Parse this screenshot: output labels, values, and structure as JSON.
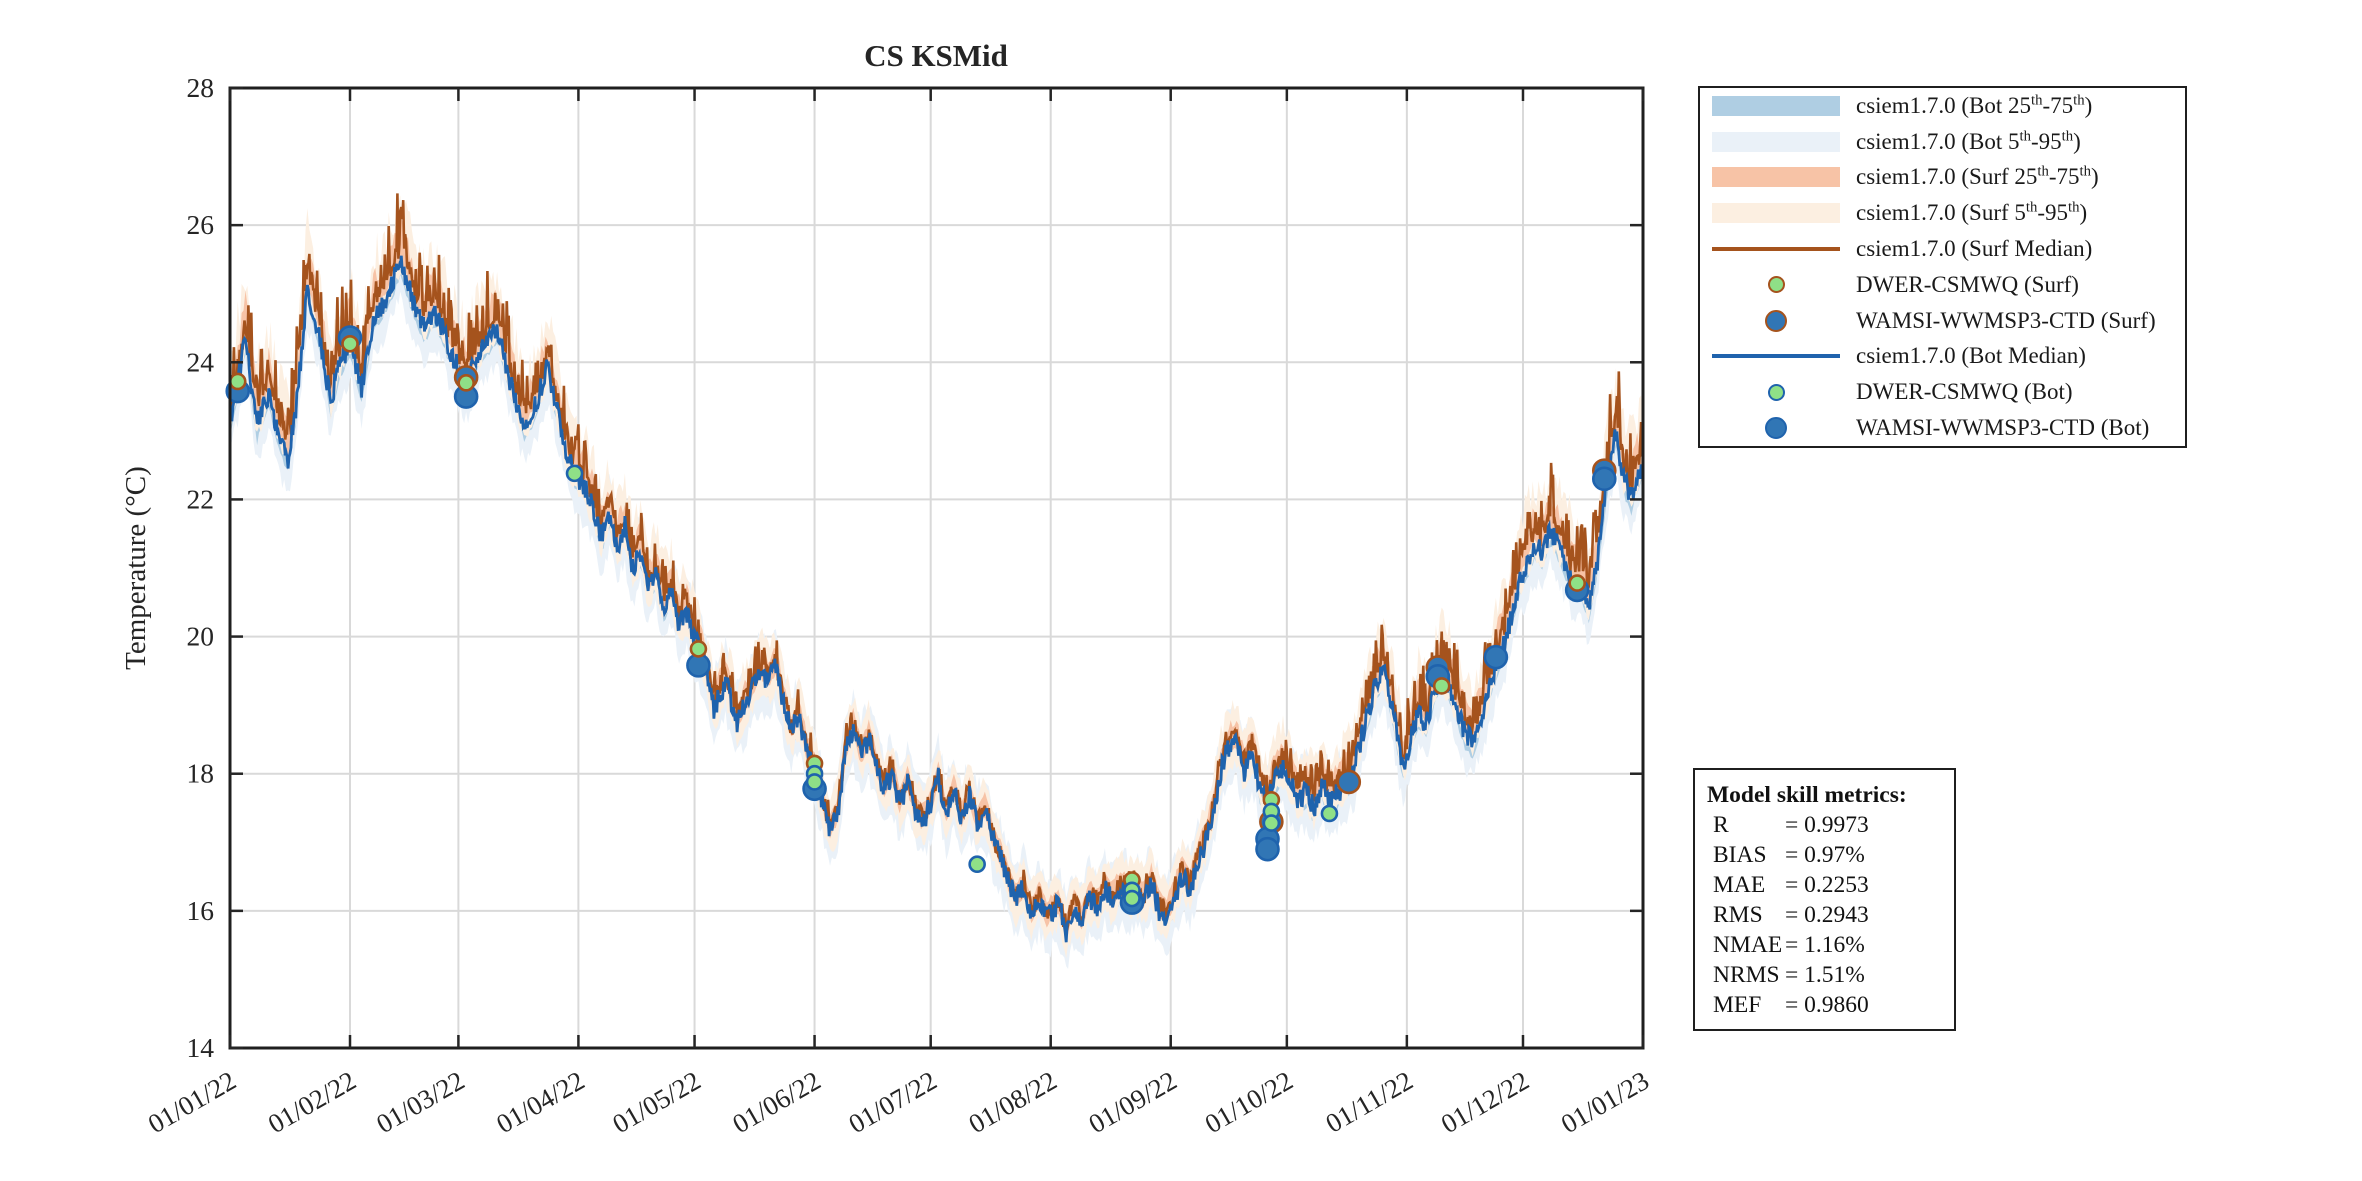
{
  "figure": {
    "title": "CS KSMid",
    "y_axis": {
      "label": "Temperature (°C)",
      "ticks": [
        14,
        16,
        18,
        20,
        22,
        24,
        26,
        28
      ],
      "min": 14,
      "max": 28
    },
    "x_axis": {
      "tick_labels": [
        "01/01/22",
        "01/02/22",
        "01/03/22",
        "01/04/22",
        "01/05/22",
        "01/06/22",
        "01/07/22",
        "01/08/22",
        "01/09/22",
        "01/10/22",
        "01/11/22",
        "01/12/22",
        "01/01/23"
      ]
    }
  },
  "colors": {
    "bot_median": "#1F63AD",
    "surf_median": "#A5531D",
    "bot_band_inner": "#AFCEE3",
    "bot_band_outer": "#EAF1F8",
    "surf_band_inner": "#F7C3A6",
    "surf_band_outer": "#FCEFE1",
    "dwer_fill": "#8FE087",
    "wamsi_fill": "#3176B5",
    "grid": "#D9D9D9",
    "axis": "#252525"
  },
  "legend": {
    "items": [
      {
        "type": "patch",
        "color": "#AFCEE3",
        "label": "csiem1.7.0 (Bot 25^{th}-75^{th})"
      },
      {
        "type": "patch",
        "color": "#EAF1F8",
        "label": "csiem1.7.0 (Bot 5^{th}-95^{th})"
      },
      {
        "type": "patch",
        "color": "#F7C3A6",
        "label": "csiem1.7.0 (Surf 25^{th}-75^{th})"
      },
      {
        "type": "patch",
        "color": "#FCEFE1",
        "label": "csiem1.7.0 (Surf 5^{th}-95^{th})"
      },
      {
        "type": "line",
        "color": "#A5531D",
        "label": "csiem1.7.0 (Surf Median)"
      },
      {
        "type": "marker",
        "fill": "#8FE087",
        "edge": "#A5531D",
        "size": "small",
        "label": "DWER-CSMWQ (Surf)"
      },
      {
        "type": "marker",
        "fill": "#3176B5",
        "edge": "#A5531D",
        "size": "large",
        "label": "WAMSI-WWMSP3-CTD (Surf)"
      },
      {
        "type": "line",
        "color": "#1F63AD",
        "label": "csiem1.7.0 (Bot Median)"
      },
      {
        "type": "marker",
        "fill": "#8FE087",
        "edge": "#1F63AD",
        "size": "small",
        "label": "DWER-CSMWQ (Bot)"
      },
      {
        "type": "marker",
        "fill": "#3176B5",
        "edge": "#1F63AD",
        "size": "large",
        "label": "WAMSI-WWMSP3-CTD (Bot)"
      }
    ]
  },
  "metrics": {
    "heading": "Model skill metrics:",
    "rows": [
      {
        "name": "R",
        "value": "= 0.9973"
      },
      {
        "name": "BIAS",
        "value": "= 0.97%"
      },
      {
        "name": "MAE",
        "value": "= 0.2253"
      },
      {
        "name": "RMS",
        "value": "= 0.2943"
      },
      {
        "name": "NMAE",
        "value": "= 1.16%"
      },
      {
        "name": "NRMS",
        "value": "= 1.51%"
      },
      {
        "name": "MEF",
        "value": "= 0.9860"
      }
    ]
  },
  "chart_data": {
    "type": "line",
    "title": "CS KSMid",
    "ylabel": "Temperature (°C)",
    "ylim": [
      14,
      28
    ],
    "ytick_values": [
      14,
      16,
      18,
      20,
      22,
      24,
      26,
      28
    ],
    "xtick_labels": [
      "01/01/22",
      "01/02/22",
      "01/03/22",
      "01/04/22",
      "01/05/22",
      "01/06/22",
      "01/07/22",
      "01/08/22",
      "01/09/22",
      "01/10/22",
      "01/11/22",
      "01/12/22",
      "01/01/23"
    ],
    "month_day_offsets": [
      0,
      31,
      59,
      90,
      120,
      151,
      181,
      212,
      243,
      273,
      304,
      334,
      365
    ],
    "model": {
      "description": "csiem1.7.0 modelled temperature, day offset from 01/01/22 vs degC",
      "bot_median_anchors": [
        [
          0,
          23.15
        ],
        [
          2,
          23.7
        ],
        [
          4,
          24.35
        ],
        [
          7,
          23.05
        ],
        [
          10,
          23.55
        ],
        [
          13,
          22.85
        ],
        [
          15,
          22.6
        ],
        [
          17,
          23.3
        ],
        [
          20,
          25.05
        ],
        [
          22,
          24.65
        ],
        [
          24,
          24.1
        ],
        [
          26,
          23.4
        ],
        [
          28,
          23.9
        ],
        [
          31,
          24.3
        ],
        [
          34,
          23.6
        ],
        [
          37,
          24.65
        ],
        [
          40,
          24.9
        ],
        [
          44,
          25.45
        ],
        [
          47,
          24.95
        ],
        [
          50,
          24.5
        ],
        [
          53,
          24.75
        ],
        [
          56,
          24.3
        ],
        [
          59,
          23.9
        ],
        [
          61,
          23.68
        ],
        [
          64,
          24.1
        ],
        [
          69,
          24.5
        ],
        [
          72,
          23.8
        ],
        [
          76,
          23.05
        ],
        [
          79,
          23.4
        ],
        [
          82,
          23.95
        ],
        [
          85,
          23.2
        ],
        [
          87,
          22.7
        ],
        [
          89,
          22.4
        ],
        [
          92,
          22.15
        ],
        [
          94,
          21.85
        ],
        [
          96,
          21.45
        ],
        [
          98,
          21.8
        ],
        [
          100,
          21.3
        ],
        [
          102,
          21.6
        ],
        [
          104,
          21.0
        ],
        [
          106,
          21.25
        ],
        [
          108,
          20.7
        ],
        [
          110,
          20.95
        ],
        [
          112,
          20.45
        ],
        [
          114,
          20.65
        ],
        [
          116,
          20.2
        ],
        [
          118,
          20.35
        ],
        [
          120,
          19.95
        ],
        [
          122,
          19.7
        ],
        [
          125,
          18.95
        ],
        [
          128,
          19.35
        ],
        [
          131,
          18.75
        ],
        [
          134,
          19.1
        ],
        [
          137,
          19.5
        ],
        [
          139,
          19.35
        ],
        [
          141,
          19.55
        ],
        [
          143,
          19.0
        ],
        [
          145,
          18.6
        ],
        [
          147,
          18.85
        ],
        [
          149,
          18.3
        ],
        [
          151,
          18.05
        ],
        [
          153,
          17.6
        ],
        [
          155,
          17.15
        ],
        [
          157,
          17.4
        ],
        [
          159,
          18.35
        ],
        [
          161,
          18.65
        ],
        [
          163,
          18.25
        ],
        [
          165,
          18.5
        ],
        [
          167,
          18.1
        ],
        [
          169,
          17.75
        ],
        [
          171,
          18.0
        ],
        [
          173,
          17.55
        ],
        [
          175,
          17.85
        ],
        [
          177,
          17.45
        ],
        [
          179,
          17.3
        ],
        [
          181,
          17.55
        ],
        [
          183,
          17.95
        ],
        [
          185,
          17.4
        ],
        [
          187,
          17.75
        ],
        [
          189,
          17.35
        ],
        [
          191,
          17.7
        ],
        [
          193,
          17.25
        ],
        [
          195,
          17.5
        ],
        [
          197,
          17.05
        ],
        [
          199,
          16.8
        ],
        [
          201,
          16.45
        ],
        [
          203,
          16.15
        ],
        [
          205,
          16.35
        ],
        [
          207,
          15.95
        ],
        [
          209,
          16.2
        ],
        [
          211,
          15.9
        ],
        [
          214,
          16.1
        ],
        [
          216,
          15.7
        ],
        [
          218,
          16.05
        ],
        [
          220,
          15.85
        ],
        [
          222,
          16.2
        ],
        [
          224,
          16.05
        ],
        [
          226,
          16.3
        ],
        [
          228,
          16.15
        ],
        [
          230,
          16.35
        ],
        [
          232,
          16.25
        ],
        [
          234,
          16.3
        ],
        [
          236,
          16.15
        ],
        [
          238,
          16.4
        ],
        [
          240,
          16.0
        ],
        [
          242,
          15.9
        ],
        [
          244,
          16.2
        ],
        [
          246,
          16.5
        ],
        [
          248,
          16.3
        ],
        [
          250,
          16.7
        ],
        [
          252,
          17.0
        ],
        [
          254,
          17.45
        ],
        [
          256,
          18.05
        ],
        [
          258,
          18.4
        ],
        [
          260,
          18.45
        ],
        [
          262,
          18.0
        ],
        [
          264,
          18.35
        ],
        [
          266,
          17.8
        ],
        [
          268,
          17.6
        ],
        [
          270,
          17.95
        ],
        [
          272,
          18.1
        ],
        [
          274,
          17.85
        ],
        [
          276,
          17.6
        ],
        [
          278,
          17.75
        ],
        [
          280,
          17.5
        ],
        [
          282,
          17.85
        ],
        [
          284,
          17.6
        ],
        [
          286,
          17.7
        ],
        [
          288,
          17.85
        ],
        [
          290,
          18.0
        ],
        [
          292,
          18.45
        ],
        [
          294,
          18.9
        ],
        [
          296,
          19.3
        ],
        [
          298,
          19.5
        ],
        [
          300,
          19.0
        ],
        [
          303,
          18.1
        ],
        [
          305,
          18.5
        ],
        [
          307,
          18.9
        ],
        [
          309,
          18.7
        ],
        [
          311,
          19.2
        ],
        [
          313,
          19.45
        ],
        [
          315,
          19.25
        ],
        [
          317,
          18.95
        ],
        [
          319,
          18.6
        ],
        [
          321,
          18.45
        ],
        [
          323,
          18.8
        ],
        [
          325,
          19.15
        ],
        [
          327,
          19.6
        ],
        [
          329,
          19.85
        ],
        [
          331,
          20.3
        ],
        [
          333,
          20.8
        ],
        [
          335,
          21.05
        ],
        [
          337,
          21.35
        ],
        [
          339,
          21.2
        ],
        [
          341,
          21.55
        ],
        [
          343,
          21.3
        ],
        [
          345,
          21.05
        ],
        [
          347,
          20.75
        ],
        [
          349,
          20.8
        ],
        [
          351,
          20.4
        ],
        [
          353,
          21.0
        ],
        [
          355,
          21.9
        ],
        [
          356,
          22.35
        ],
        [
          358,
          22.95
        ],
        [
          360,
          22.3
        ],
        [
          362,
          22.0
        ],
        [
          363,
          22.25
        ],
        [
          365,
          22.5
        ]
      ],
      "surf_delta_anchors": [
        [
          0,
          0.22
        ],
        [
          45,
          0.25
        ],
        [
          90,
          0.15
        ],
        [
          120,
          0.1
        ],
        [
          150,
          0.07
        ],
        [
          200,
          0.05
        ],
        [
          240,
          0.08
        ],
        [
          270,
          0.12
        ],
        [
          300,
          0.18
        ],
        [
          335,
          0.22
        ],
        [
          365,
          0.25
        ]
      ],
      "band_halfwidths": {
        "inner_25_75": 0.16,
        "outer_5_95": 0.38
      },
      "noise": {
        "seed": 42,
        "bot_amp": 0.16,
        "surf_amp": 0.15,
        "surf_spike_amp": 2.2
      }
    },
    "observations": {
      "dwer_surf": {
        "label": "DWER-CSMWQ (Surf)",
        "points": [
          [
            2,
            23.72
          ],
          [
            31,
            24.27
          ],
          [
            61,
            23.7
          ],
          [
            121,
            19.82
          ],
          [
            151,
            18.15
          ],
          [
            233,
            16.45
          ],
          [
            269,
            17.62
          ],
          [
            313,
            19.28
          ],
          [
            348,
            20.78
          ]
        ]
      },
      "dwer_bot": {
        "label": "DWER-CSMWQ (Bot)",
        "points": [
          [
            89,
            22.38
          ],
          [
            151,
            18.0
          ],
          [
            151,
            17.88
          ],
          [
            193,
            16.68
          ],
          [
            233,
            16.3
          ],
          [
            233,
            16.18
          ],
          [
            269,
            17.45
          ],
          [
            269,
            17.28
          ],
          [
            284,
            17.42
          ]
        ]
      },
      "wamsi_surf": {
        "label": "WAMSI-WWMSP3-CTD (Surf)",
        "points": [
          [
            61,
            23.78
          ],
          [
            269,
            17.3
          ],
          [
            289,
            17.88
          ],
          [
            312,
            19.55
          ],
          [
            355,
            22.42
          ]
        ]
      },
      "wamsi_bot": {
        "label": "WAMSI-WWMSP3-CTD (Bot)",
        "points": [
          [
            2,
            23.58
          ],
          [
            31,
            24.36
          ],
          [
            61,
            23.5
          ],
          [
            121,
            19.58
          ],
          [
            151,
            17.78
          ],
          [
            233,
            16.12
          ],
          [
            268,
            17.05
          ],
          [
            268,
            16.9
          ],
          [
            312,
            19.42
          ],
          [
            327,
            19.7
          ],
          [
            348,
            20.68
          ],
          [
            355,
            22.3
          ]
        ]
      }
    },
    "layout_hints": {
      "grid": true,
      "legend_position": "outside-right",
      "x_label_rotation_deg": 30
    }
  }
}
